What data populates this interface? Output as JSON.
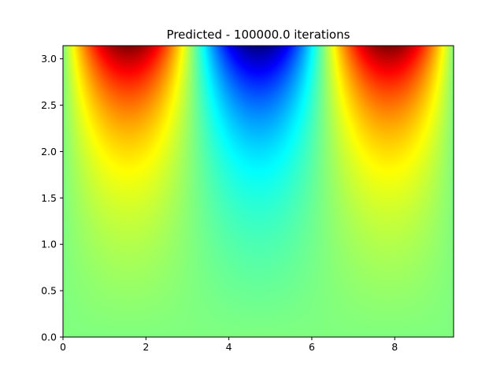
{
  "chart_data": {
    "type": "heatmap",
    "title": "Predicted - 100000.0 iterations",
    "xlabel": "",
    "ylabel": "",
    "xlim": [
      0,
      9.42
    ],
    "ylim": [
      0,
      3.1416
    ],
    "x_ticks": [
      0,
      2,
      4,
      6,
      8
    ],
    "y_ticks": [
      0.0,
      0.5,
      1.0,
      1.5,
      2.0,
      2.5,
      3.0
    ],
    "x_tick_labels": [
      "0",
      "2",
      "4",
      "6",
      "8"
    ],
    "y_tick_labels": [
      "0.0",
      "0.5",
      "1.0",
      "1.5",
      "2.0",
      "2.5",
      "3.0"
    ],
    "colormap": "jet",
    "value_range": [
      -1,
      1
    ],
    "field": "u(x, y) = sin(x) * sinh(y) / sinh(pi)",
    "grid": false,
    "legend": "none"
  }
}
